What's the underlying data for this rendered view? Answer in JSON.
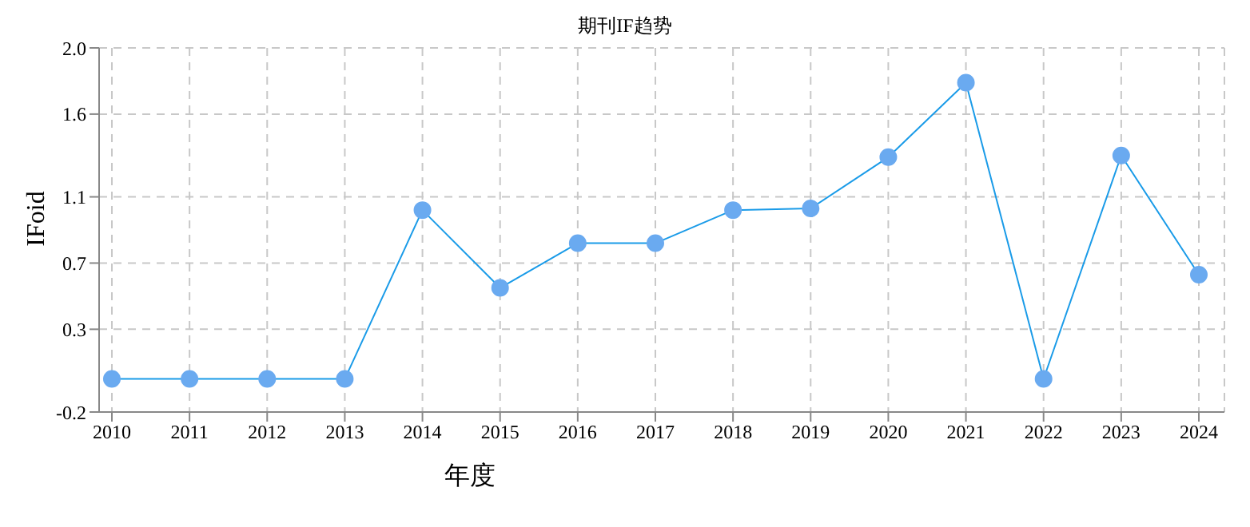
{
  "chart_data": {
    "type": "line",
    "title": "期刊IF趋势",
    "xlabel": "年度",
    "ylabel": "IFoid",
    "categories": [
      "2010",
      "2011",
      "2012",
      "2013",
      "2014",
      "2015",
      "2016",
      "2017",
      "2018",
      "2019",
      "2020",
      "2021",
      "2022",
      "2023",
      "2024"
    ],
    "series": [
      {
        "color": "#1a9be8",
        "values": [
          0,
          0,
          0,
          0,
          1.02,
          0.55,
          0.82,
          0.82,
          1.02,
          1.03,
          1.34,
          1.79,
          0,
          1.35,
          0.63
        ]
      }
    ],
    "ylim": [
      -0.2,
      2.0
    ],
    "yticks": [
      -0.2,
      0.3,
      0.7,
      1.1,
      1.6,
      {
        "value": 2.0,
        "label": "2.0"
      }
    ],
    "grid": true,
    "marker": "circle",
    "line_style": "solid"
  }
}
